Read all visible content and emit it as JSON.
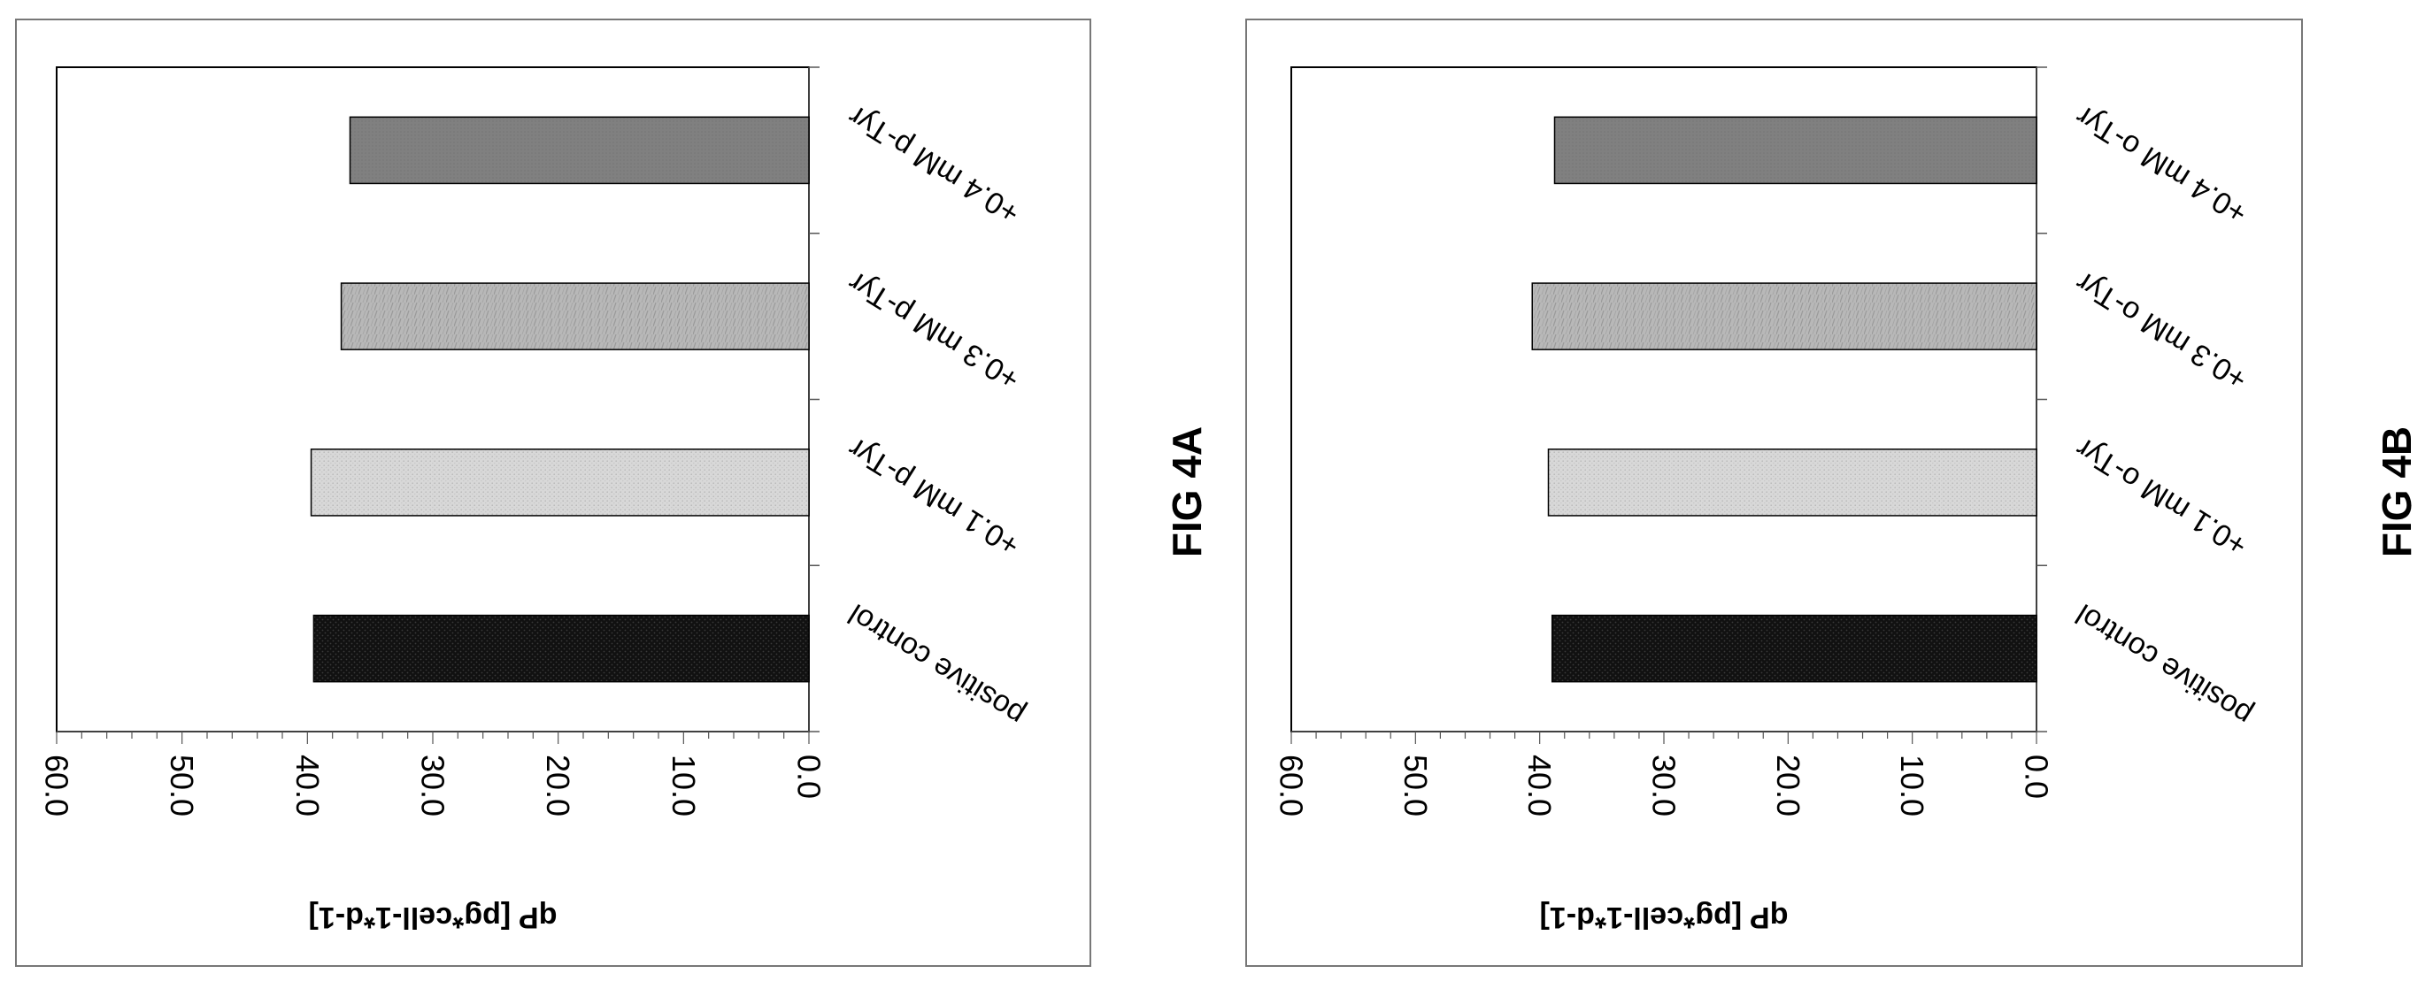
{
  "figures": [
    {
      "caption": "FIG 4A",
      "ylabel": "qP [pg*cell-1*d-1]",
      "categories": [
        "positive control",
        "+0.1 mM p-Tyr",
        "+0.3 mM p-Tyr",
        "+0.4 mM p-Tyr"
      ]
    },
    {
      "caption": "FIG 4B",
      "ylabel": "qP [pg*cell-1*d-1]",
      "categories": [
        "positive control",
        "+0.1 mM o-Tyr",
        "+0.3 mM o-Tyr",
        "+0.4 mM o-Tyr"
      ]
    }
  ],
  "colors": {
    "bar_positive_control": "#111111",
    "bar_0_1_mM": "#d4d4d4",
    "bar_0_3_mM": "#b4b4b4",
    "bar_0_4_mM": "#808080",
    "frame": "#777777",
    "axis": "#555555"
  },
  "chart_data": [
    {
      "type": "bar",
      "orientation": "rotated 180 degrees",
      "categories": [
        "positive control",
        "+0.1 mM p-Tyr",
        "+0.3 mM p-Tyr",
        "+0.4 mM p-Tyr"
      ],
      "values": [
        39.5,
        39.7,
        37.3,
        36.6
      ],
      "ylabel": "qP [pg*cell-1*d-1]",
      "ylim": [
        0,
        60
      ],
      "yticks": [
        "0.0",
        "10.0",
        "20.0",
        "30.0",
        "40.0",
        "50.0",
        "60.0"
      ],
      "grid": false
    },
    {
      "type": "bar",
      "orientation": "rotated 180 degrees",
      "categories": [
        "positive control",
        "+0.1 mM o-Tyr",
        "+0.3 mM o-Tyr",
        "+0.4 mM o-Tyr"
      ],
      "values": [
        39.0,
        39.3,
        40.6,
        38.8
      ],
      "ylabel": "qP [pg*cell-1*d-1]",
      "ylim": [
        0,
        60
      ],
      "yticks": [
        "0.0",
        "10.0",
        "20.0",
        "30.0",
        "40.0",
        "50.0",
        "60.0"
      ],
      "grid": false
    }
  ]
}
